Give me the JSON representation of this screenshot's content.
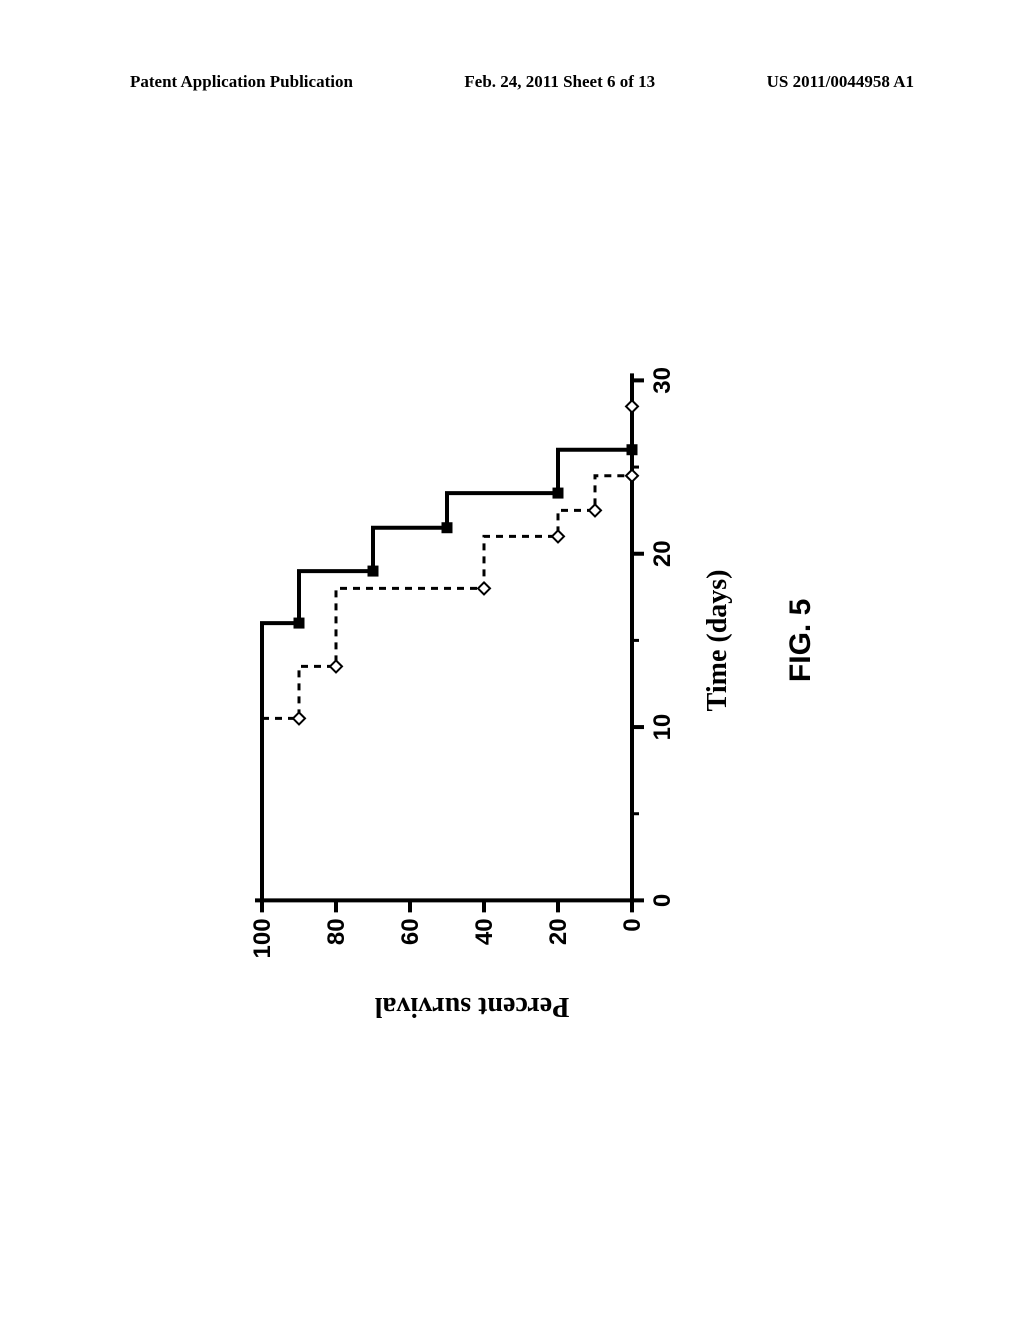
{
  "header": {
    "left": "Patent Application Publication",
    "center": "Feb. 24, 2011  Sheet 6 of 13",
    "right": "US 2011/0044958 A1"
  },
  "figure": {
    "type": "survival-step",
    "caption": "FIG. 5",
    "xlabel": "Time (days)",
    "ylabel": "Percent survival",
    "xlim": [
      0,
      30
    ],
    "ylim": [
      0,
      100
    ],
    "xticks": [
      0,
      10,
      20,
      30
    ],
    "yticks": [
      0,
      20,
      40,
      60,
      80,
      100
    ],
    "axis_color": "#000000",
    "axis_width": 4,
    "tick_len_major": 12,
    "tick_len_minor": 7,
    "background_color": "#ffffff",
    "tick_fontsize": 24,
    "label_fontsize": 28,
    "caption_fontsize": 30,
    "series": [
      {
        "name": "series-a",
        "color": "#000000",
        "line_width": 4,
        "dash": null,
        "marker_shape": "square-filled",
        "marker_size": 11,
        "points": [
          {
            "x": 0,
            "y": 100
          },
          {
            "x": 16,
            "y": 100
          },
          {
            "x": 16,
            "y": 90
          },
          {
            "x": 19,
            "y": 90
          },
          {
            "x": 19,
            "y": 70
          },
          {
            "x": 21.5,
            "y": 70
          },
          {
            "x": 21.5,
            "y": 50
          },
          {
            "x": 23.5,
            "y": 50
          },
          {
            "x": 23.5,
            "y": 20
          },
          {
            "x": 26,
            "y": 20
          },
          {
            "x": 26,
            "y": 0
          }
        ],
        "markers": [
          {
            "x": 16,
            "y": 90
          },
          {
            "x": 19,
            "y": 70
          },
          {
            "x": 21.5,
            "y": 50
          },
          {
            "x": 23.5,
            "y": 20
          },
          {
            "x": 26,
            "y": 0
          }
        ]
      },
      {
        "name": "series-b",
        "color": "#000000",
        "line_width": 3,
        "dash": "7 6",
        "marker_shape": "diamond-open",
        "marker_size": 12,
        "points": [
          {
            "x": 0,
            "y": 100
          },
          {
            "x": 10.5,
            "y": 100
          },
          {
            "x": 10.5,
            "y": 90
          },
          {
            "x": 13.5,
            "y": 90
          },
          {
            "x": 13.5,
            "y": 80
          },
          {
            "x": 18,
            "y": 80
          },
          {
            "x": 18,
            "y": 40
          },
          {
            "x": 21,
            "y": 40
          },
          {
            "x": 21,
            "y": 20
          },
          {
            "x": 22.5,
            "y": 20
          },
          {
            "x": 22.5,
            "y": 10
          },
          {
            "x": 24.5,
            "y": 10
          },
          {
            "x": 24.5,
            "y": 0
          },
          {
            "x": 28.5,
            "y": 0
          }
        ],
        "markers": [
          {
            "x": 10.5,
            "y": 90
          },
          {
            "x": 13.5,
            "y": 80
          },
          {
            "x": 18,
            "y": 40
          },
          {
            "x": 21,
            "y": 20
          },
          {
            "x": 22.5,
            "y": 10
          },
          {
            "x": 24.5,
            "y": 0
          },
          {
            "x": 28.5,
            "y": 0
          }
        ]
      }
    ]
  }
}
